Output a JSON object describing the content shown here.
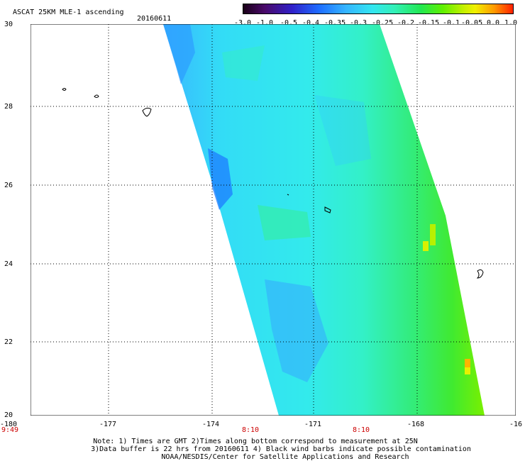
{
  "title": "ASCAT 25KM MLE-1 ascending",
  "date": "20160611",
  "colorbar": {
    "labels": [
      "-3.0",
      "-1.0",
      "-0.5",
      "-0.4",
      "-0.35",
      "-0.3",
      "-0.25",
      "-0.2",
      "-0.15",
      "-0.1",
      "-0.05",
      "0.0",
      "1.0"
    ],
    "colors": [
      "#1a0018",
      "#4a0a6a",
      "#3020c8",
      "#1e6cff",
      "#34b4ff",
      "#33e6f0",
      "#33f0b8",
      "#22e850",
      "#60f000",
      "#c8f000",
      "#f0f000",
      "#ff9a00",
      "#ff2000"
    ]
  },
  "y_ticks": [
    "30",
    "28",
    "26",
    "24",
    "22",
    "20"
  ],
  "x_ticks": [
    "-180",
    "-177",
    "-174",
    "-171",
    "-168",
    "-16"
  ],
  "times": [
    "9:49",
    "8:10",
    "8:10"
  ],
  "notes": [
    "Note: 1) Times are GMT 2)Times along bottom correspond to measurement at 25N",
    "3)Data buffer is 22 hrs from 20160611 4) Black wind barbs indicate possible contamination",
    "NOAA/NESDIS/Center for Satellite Applications and Research"
  ]
}
